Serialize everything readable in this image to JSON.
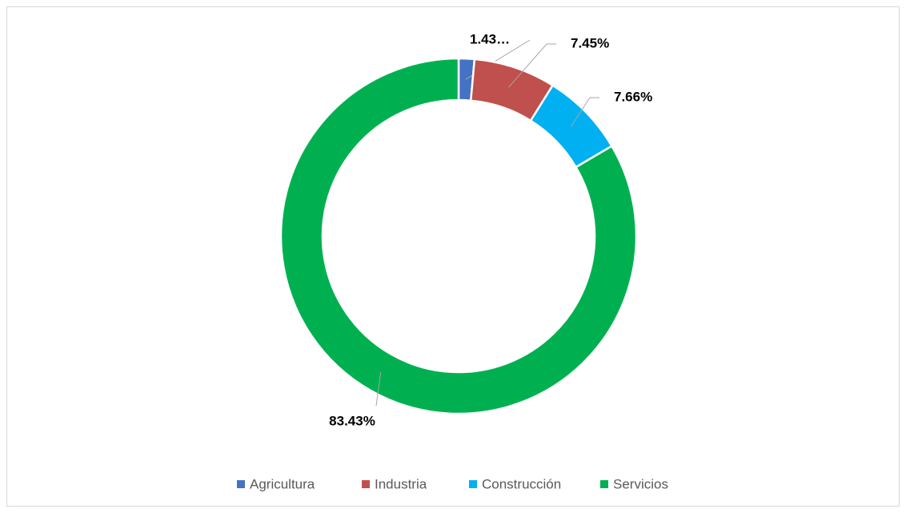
{
  "chart_data": {
    "type": "donut",
    "categories": [
      "Agricultura",
      "Industria",
      "Construcción",
      "Servicios"
    ],
    "values": [
      1.43,
      7.45,
      7.66,
      83.43
    ],
    "value_labels": [
      "1.43…",
      "7.45%",
      "7.66%",
      "83.43%"
    ],
    "colors": [
      "#4472c4",
      "#c0504d",
      "#00b0f0",
      "#00b050"
    ],
    "legend": "bottom"
  }
}
